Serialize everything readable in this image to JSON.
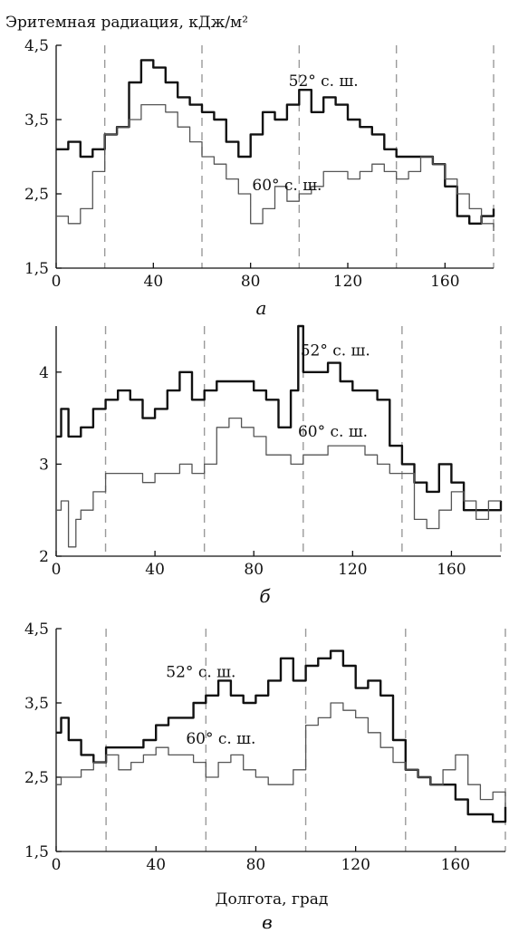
{
  "figure": {
    "ylabel": "Эритемная радиация, кДж/м²",
    "xlabel": "Долгота, град"
  },
  "chart_data": [
    {
      "type": "line",
      "panel_label": "а",
      "xlim": [
        0,
        180
      ],
      "ylim": [
        1.5,
        4.5
      ],
      "xticks": [
        0,
        40,
        80,
        120,
        160
      ],
      "yticks": [
        "1,5",
        "2,5",
        "3,5",
        "4,5"
      ],
      "dashed_x": [
        20,
        60,
        100,
        140,
        180
      ],
      "series": [
        {
          "name": "52° с. ш.",
          "x": [
            0,
            5,
            10,
            15,
            20,
            25,
            30,
            35,
            40,
            45,
            50,
            55,
            60,
            65,
            70,
            75,
            80,
            85,
            90,
            95,
            100,
            105,
            110,
            115,
            120,
            125,
            130,
            135,
            140,
            145,
            150,
            155,
            160,
            165,
            170,
            175,
            180
          ],
          "y": [
            3.1,
            3.2,
            3.0,
            3.1,
            3.3,
            3.4,
            4.0,
            4.3,
            4.2,
            4.0,
            3.8,
            3.7,
            3.6,
            3.5,
            3.2,
            3.0,
            3.3,
            3.6,
            3.5,
            3.7,
            3.9,
            3.6,
            3.8,
            3.7,
            3.5,
            3.4,
            3.3,
            3.1,
            3.0,
            3.0,
            3.0,
            2.9,
            2.6,
            2.2,
            2.1,
            2.2,
            2.3
          ]
        },
        {
          "name": "60° с. ш.",
          "x": [
            0,
            5,
            10,
            15,
            20,
            25,
            30,
            35,
            40,
            45,
            50,
            55,
            60,
            65,
            70,
            75,
            80,
            85,
            90,
            95,
            100,
            105,
            110,
            115,
            120,
            125,
            130,
            135,
            140,
            145,
            150,
            155,
            160,
            165,
            170,
            175,
            180
          ],
          "y": [
            2.2,
            2.1,
            2.3,
            2.8,
            3.3,
            3.4,
            3.5,
            3.7,
            3.7,
            3.6,
            3.4,
            3.2,
            3.0,
            2.9,
            2.7,
            2.5,
            2.1,
            2.3,
            2.6,
            2.4,
            2.5,
            2.6,
            2.8,
            2.8,
            2.7,
            2.8,
            2.9,
            2.8,
            2.7,
            2.8,
            3.0,
            2.9,
            2.7,
            2.5,
            2.3,
            2.1,
            2.0
          ]
        }
      ],
      "annotations": [
        {
          "text": "52° с. ш.",
          "x": 110,
          "y": 3.95
        },
        {
          "text": "60° с. ш.",
          "x": 95,
          "y": 2.55
        }
      ]
    },
    {
      "type": "line",
      "panel_label": "б",
      "xlim": [
        0,
        180
      ],
      "ylim": [
        2,
        4.5
      ],
      "xticks": [
        0,
        40,
        80,
        120,
        160
      ],
      "yticks": [
        "2",
        "3",
        "4"
      ],
      "dashed_x": [
        20,
        60,
        100,
        140,
        180
      ],
      "series": [
        {
          "name": "52° с. ш.",
          "x": [
            0,
            2,
            5,
            8,
            10,
            15,
            20,
            25,
            30,
            35,
            40,
            45,
            50,
            55,
            60,
            65,
            70,
            75,
            80,
            85,
            90,
            95,
            98,
            100,
            105,
            110,
            115,
            120,
            125,
            130,
            135,
            140,
            145,
            150,
            155,
            160,
            165,
            170,
            175,
            180
          ],
          "y": [
            3.3,
            3.6,
            3.3,
            3.3,
            3.4,
            3.6,
            3.7,
            3.8,
            3.7,
            3.5,
            3.6,
            3.8,
            4.0,
            3.7,
            3.8,
            3.9,
            3.9,
            3.9,
            3.8,
            3.7,
            3.4,
            3.8,
            4.5,
            4.0,
            4.0,
            4.1,
            3.9,
            3.8,
            3.8,
            3.7,
            3.2,
            3.0,
            2.8,
            2.7,
            3.0,
            2.8,
            2.5,
            2.5,
            2.5,
            2.6
          ]
        },
        {
          "name": "60° с. ш.",
          "x": [
            0,
            2,
            5,
            8,
            10,
            15,
            20,
            25,
            30,
            35,
            40,
            45,
            50,
            55,
            60,
            65,
            70,
            75,
            80,
            85,
            90,
            95,
            100,
            105,
            110,
            115,
            120,
            125,
            130,
            135,
            140,
            145,
            150,
            155,
            160,
            165,
            170,
            175,
            180
          ],
          "y": [
            2.5,
            2.6,
            2.1,
            2.4,
            2.5,
            2.7,
            2.9,
            2.9,
            2.9,
            2.8,
            2.9,
            2.9,
            3.0,
            2.9,
            3.0,
            3.4,
            3.5,
            3.4,
            3.3,
            3.1,
            3.1,
            3.0,
            3.1,
            3.1,
            3.2,
            3.2,
            3.2,
            3.1,
            3.0,
            2.9,
            2.9,
            2.4,
            2.3,
            2.5,
            2.7,
            2.6,
            2.4,
            2.6,
            2.6
          ]
        }
      ],
      "annotations": [
        {
          "text": "52° с. ш.",
          "x": 113,
          "y": 4.18
        },
        {
          "text": "60° с. ш.",
          "x": 112,
          "y": 3.3
        }
      ]
    },
    {
      "type": "line",
      "panel_label": "в",
      "xlim": [
        0,
        180
      ],
      "ylim": [
        1.5,
        4.5
      ],
      "xticks": [
        0,
        40,
        80,
        120,
        160
      ],
      "yticks": [
        "1,5",
        "2,5",
        "3,5",
        "4,5"
      ],
      "dashed_x": [
        20,
        60,
        100,
        140,
        180
      ],
      "series": [
        {
          "name": "52° с. ш.",
          "x": [
            0,
            2,
            5,
            10,
            15,
            20,
            25,
            30,
            35,
            40,
            45,
            50,
            55,
            60,
            65,
            70,
            75,
            80,
            85,
            90,
            95,
            100,
            105,
            110,
            115,
            120,
            125,
            130,
            135,
            140,
            145,
            150,
            155,
            160,
            165,
            170,
            175,
            180
          ],
          "y": [
            3.1,
            3.3,
            3.0,
            2.8,
            2.7,
            2.9,
            2.9,
            2.9,
            3.0,
            3.2,
            3.3,
            3.3,
            3.5,
            3.6,
            3.8,
            3.6,
            3.5,
            3.6,
            3.8,
            4.1,
            3.8,
            4.0,
            4.1,
            4.2,
            4.0,
            3.7,
            3.8,
            3.6,
            3.0,
            2.6,
            2.5,
            2.4,
            2.4,
            2.2,
            2.0,
            2.0,
            1.9,
            2.1
          ]
        },
        {
          "name": "60° с. ш.",
          "x": [
            0,
            2,
            5,
            10,
            15,
            20,
            25,
            30,
            35,
            40,
            45,
            50,
            55,
            60,
            65,
            70,
            75,
            80,
            85,
            90,
            95,
            100,
            105,
            110,
            115,
            120,
            125,
            130,
            135,
            140,
            145,
            150,
            155,
            160,
            165,
            170,
            175,
            180
          ],
          "y": [
            2.4,
            2.5,
            2.5,
            2.6,
            2.7,
            2.8,
            2.6,
            2.7,
            2.8,
            2.9,
            2.8,
            2.8,
            2.7,
            2.5,
            2.7,
            2.8,
            2.6,
            2.5,
            2.4,
            2.4,
            2.6,
            3.2,
            3.3,
            3.5,
            3.4,
            3.3,
            3.1,
            2.9,
            2.7,
            2.6,
            2.5,
            2.4,
            2.6,
            2.8,
            2.4,
            2.2,
            2.3,
            2.1
          ]
        }
      ],
      "annotations": [
        {
          "text": "52° с. ш.",
          "x": 58,
          "y": 3.85
        },
        {
          "text": "60° с. ш.",
          "x": 66,
          "y": 2.95
        }
      ]
    }
  ]
}
